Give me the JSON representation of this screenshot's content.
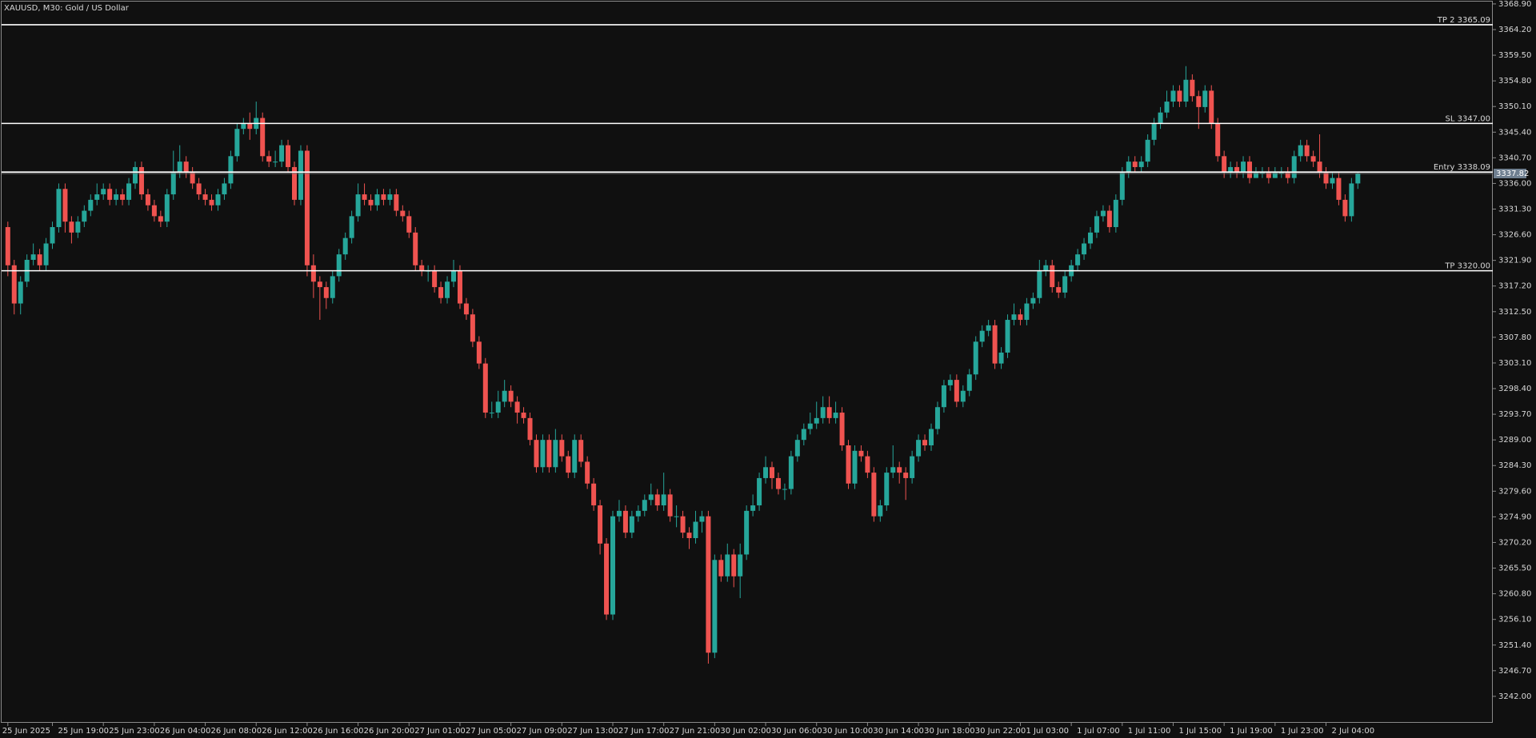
{
  "chart_data": {
    "type": "candlestick",
    "title": "XAUUSD, M30:  Gold / US Dollar",
    "categories": [
      "25 Jun 2025",
      null,
      null,
      null,
      null,
      null,
      null,
      "25 Jun 19:00",
      null,
      null,
      null,
      null,
      null,
      null,
      null,
      "25 Jun 23:00",
      null,
      null,
      null,
      null,
      null,
      null,
      null,
      "26 Jun 04:00",
      null,
      null,
      null,
      null,
      null,
      null,
      null,
      "26 Jun 08:00",
      null,
      null,
      null,
      null,
      null,
      null,
      null,
      "26 Jun 12:00",
      null,
      null,
      null,
      null,
      null,
      null,
      null,
      "26 Jun 16:00",
      null,
      null,
      null,
      null,
      null,
      null,
      null,
      "26 Jun 20:00",
      null,
      null,
      null,
      null,
      null,
      null,
      null,
      "27 Jun 01:00",
      null,
      null,
      null,
      null,
      null,
      null,
      null,
      "27 Jun 05:00",
      null,
      null,
      null,
      null,
      null,
      null,
      null,
      "27 Jun 09:00",
      null,
      null,
      null,
      null,
      null,
      null,
      null,
      "27 Jun 13:00",
      null,
      null,
      null,
      null,
      null,
      null,
      null,
      "27 Jun 17:00",
      null,
      null,
      null,
      null,
      null,
      null,
      null,
      "27 Jun 21:00",
      null,
      null,
      null,
      null,
      null,
      null,
      null,
      "30 Jun 02:00",
      null,
      null,
      null,
      null,
      null,
      null,
      null,
      "30 Jun 06:00",
      null,
      null,
      null,
      null,
      null,
      null,
      null,
      "30 Jun 10:00",
      null,
      null,
      null,
      null,
      null,
      null,
      null,
      "30 Jun 14:00",
      null,
      null,
      null,
      null,
      null,
      null,
      null,
      "30 Jun 18:00",
      null,
      null,
      null,
      null,
      null,
      null,
      null,
      "30 Jun 22:00",
      null,
      null,
      null,
      null,
      null,
      null,
      null,
      "1 Jul 03:00",
      null,
      null,
      null,
      null,
      null,
      null,
      null,
      "1 Jul 07:00",
      null,
      null,
      null,
      null,
      null,
      null,
      null,
      "1 Jul 11:00",
      null,
      null,
      null,
      null,
      null,
      null,
      null,
      "1 Jul 15:00",
      null,
      null,
      null,
      null,
      null,
      null,
      null,
      "1 Jul 19:00",
      null,
      null,
      null,
      null,
      null,
      null,
      null,
      "1 Jul 23:00",
      null,
      null,
      null,
      null,
      null,
      null,
      null,
      "2 Jul 04:00",
      null,
      null,
      null,
      null,
      null
    ],
    "open": [
      3328,
      3321,
      3314,
      3318,
      3322,
      3323,
      3321,
      3325,
      3328,
      3335,
      3329,
      3327,
      3329,
      3331,
      3333,
      3334,
      3335,
      3333,
      3334,
      3333,
      3336,
      3339,
      3334,
      3332,
      3330,
      3329,
      3334,
      3338,
      3340,
      3338,
      3336,
      3334,
      3333,
      3332,
      3334,
      3336,
      3341,
      3346,
      3347,
      3346,
      3348,
      3341,
      3340,
      3340,
      3343,
      3339,
      3333,
      3342,
      3321,
      3318,
      3317,
      3315,
      3319,
      3323,
      3326,
      3330,
      3334,
      3333,
      3332,
      3334,
      3333,
      3334,
      3331,
      3330,
      3327,
      3321,
      3320,
      3320,
      3317,
      3315,
      3318,
      3320,
      3314,
      3312,
      3307,
      3303,
      3294,
      3294,
      3296,
      3298,
      3296,
      3294,
      3293,
      3289,
      3284,
      3289,
      3284,
      3289,
      3286,
      3283,
      3289,
      3285,
      3281,
      3277,
      3270,
      3257,
      3275,
      3276,
      3272,
      3275,
      3276,
      3278,
      3279,
      3277,
      3279,
      3275,
      3275,
      3272,
      3271,
      3274,
      3275,
      3250,
      3267,
      3264,
      3268,
      3264,
      3268,
      3276,
      3277,
      3282,
      3284,
      3282,
      3280,
      3280,
      3286,
      3289,
      3291,
      3292,
      3293,
      3295,
      3293,
      3294,
      3288,
      3281,
      3287,
      3286,
      3283,
      3275,
      3277,
      3283,
      3284,
      3283,
      3282,
      3286,
      3289,
      3288,
      3291,
      3295,
      3299,
      3300,
      3296,
      3298,
      3301,
      3307,
      3309,
      3310,
      3303,
      3305,
      3311,
      3312,
      3311,
      3314,
      3315,
      3320,
      3321,
      3317,
      3316,
      3319,
      3321,
      3323,
      3325,
      3327,
      3330,
      3331,
      3328,
      3333,
      3338,
      3340,
      3339,
      3340,
      3344,
      3347,
      3349,
      3351,
      3353,
      3351,
      3355,
      3352,
      3350,
      3353,
      3347,
      3341,
      3338,
      3339,
      3338,
      3340,
      3337,
      3338,
      3338,
      3337,
      3338,
      3338,
      3337,
      3341,
      3343,
      3341,
      3340,
      3338,
      3336,
      3337,
      3333,
      3330,
      3336
    ],
    "high": [
      3329,
      3322,
      3319,
      3323,
      3325,
      3324,
      3326,
      3329,
      3336,
      3336,
      3330,
      3330,
      3332,
      3334,
      3336,
      3336,
      3336,
      3335,
      3335,
      3337,
      3340,
      3340,
      3335,
      3333,
      3331,
      3335,
      3342,
      3343,
      3341,
      3339,
      3337,
      3335,
      3334,
      3335,
      3337,
      3342,
      3347,
      3348,
      3349,
      3351,
      3349,
      3342,
      3342,
      3344,
      3344,
      3340,
      3343,
      3343,
      3323,
      3319,
      3318,
      3320,
      3324,
      3327,
      3331,
      3336,
      3336,
      3334,
      3335,
      3335,
      3335,
      3335,
      3332,
      3331,
      3328,
      3322,
      3321,
      3321,
      3318,
      3319,
      3322,
      3321,
      3315,
      3313,
      3308,
      3304,
      3296,
      3298,
      3300,
      3299,
      3297,
      3295,
      3294,
      3290,
      3290,
      3290,
      3291,
      3290,
      3287,
      3290,
      3290,
      3286,
      3282,
      3278,
      3271,
      3276,
      3278,
      3277,
      3276,
      3277,
      3279,
      3281,
      3280,
      3283,
      3280,
      3277,
      3276,
      3273,
      3276,
      3276,
      3276,
      3268,
      3268,
      3270,
      3269,
      3270,
      3277,
      3279,
      3283,
      3286,
      3285,
      3283,
      3281,
      3287,
      3290,
      3292,
      3294,
      3296,
      3297,
      3297,
      3296,
      3295,
      3289,
      3288,
      3288,
      3287,
      3284,
      3278,
      3284,
      3288,
      3285,
      3284,
      3287,
      3290,
      3290,
      3292,
      3296,
      3300,
      3301,
      3301,
      3299,
      3302,
      3308,
      3310,
      3311,
      3311,
      3306,
      3312,
      3314,
      3313,
      3315,
      3316,
      3322,
      3322,
      3322,
      3318,
      3320,
      3322,
      3324,
      3326,
      3328,
      3331,
      3332,
      3332,
      3334,
      3339,
      3341,
      3341,
      3341,
      3345,
      3348,
      3350,
      3353,
      3354,
      3354,
      3357.5,
      3356,
      3353,
      3354,
      3354,
      3348,
      3342,
      3340,
      3340,
      3341,
      3341,
      3339,
      3339,
      3339,
      3339,
      3339,
      3339,
      3342,
      3344,
      3344,
      3342,
      3345,
      3339,
      3338,
      3338,
      3334,
      3337,
      3338
    ],
    "low": [
      3319,
      3312,
      3312,
      3317,
      3321,
      3320,
      3320,
      3324,
      3327,
      3327,
      3325,
      3326,
      3328,
      3330,
      3332,
      3333,
      3332,
      3332,
      3332,
      3332,
      3335,
      3333,
      3331,
      3329,
      3328,
      3328,
      3333,
      3337,
      3337,
      3335,
      3333,
      3332,
      3331,
      3331,
      3333,
      3335,
      3340,
      3345,
      3344,
      3345,
      3340,
      3339,
      3339,
      3339,
      3338,
      3332,
      3332,
      3319,
      3315,
      3311,
      3313,
      3314,
      3318,
      3322,
      3325,
      3329,
      3332,
      3331,
      3331,
      3332,
      3332,
      3330,
      3329,
      3326,
      3320,
      3319,
      3318,
      3316,
      3314,
      3314,
      3317,
      3313,
      3311,
      3306,
      3302,
      3293,
      3293,
      3293,
      3295,
      3295,
      3292,
      3292,
      3288,
      3283,
      3283,
      3283,
      3283,
      3285,
      3282,
      3282,
      3284,
      3280,
      3276,
      3268,
      3256,
      3256,
      3274,
      3271,
      3271,
      3274,
      3275,
      3277,
      3276,
      3276,
      3274,
      3273,
      3271,
      3269,
      3270,
      3272,
      3248,
      3249,
      3263,
      3263,
      3262,
      3260,
      3267,
      3275,
      3276,
      3281,
      3280,
      3279,
      3278,
      3279,
      3285,
      3288,
      3290,
      3291,
      3292,
      3292,
      3292,
      3287,
      3280,
      3280,
      3285,
      3282,
      3274,
      3274,
      3276,
      3282,
      3281,
      3278,
      3281,
      3285,
      3287,
      3287,
      3290,
      3294,
      3298,
      3295,
      3295,
      3297,
      3300,
      3306,
      3308,
      3302,
      3302,
      3304,
      3310,
      3310,
      3310,
      3313,
      3314,
      3319,
      3316,
      3315,
      3315,
      3318,
      3320,
      3322,
      3324,
      3326,
      3329,
      3327,
      3327,
      3332,
      3337,
      3338,
      3338,
      3339,
      3343,
      3346,
      3348,
      3350,
      3350,
      3350,
      3351,
      3346,
      3349,
      3346,
      3340,
      3337,
      3337,
      3337,
      3337,
      3336,
      3337,
      3337,
      3336,
      3337,
      3337,
      3336,
      3336,
      3340,
      3340,
      3339,
      3337,
      3335,
      3335,
      3332,
      3329,
      3329,
      3335
    ],
    "close": [
      3321,
      3314,
      3318,
      3322,
      3323,
      3321,
      3325,
      3328,
      3335,
      3329,
      3327,
      3329,
      3331,
      3333,
      3334,
      3335,
      3333,
      3334,
      3333,
      3336,
      3339,
      3334,
      3332,
      3330,
      3329,
      3334,
      3338,
      3340,
      3338,
      3336,
      3334,
      3333,
      3332,
      3334,
      3336,
      3341,
      3346,
      3347,
      3346,
      3348,
      3341,
      3340,
      3340,
      3343,
      3339,
      3333,
      3342,
      3321,
      3318,
      3317,
      3315,
      3319,
      3323,
      3326,
      3330,
      3334,
      3333,
      3332,
      3334,
      3333,
      3334,
      3331,
      3330,
      3327,
      3321,
      3320,
      3320,
      3317,
      3315,
      3318,
      3320,
      3314,
      3312,
      3307,
      3303,
      3294,
      3294,
      3296,
      3298,
      3296,
      3294,
      3293,
      3289,
      3284,
      3289,
      3284,
      3289,
      3286,
      3283,
      3289,
      3285,
      3281,
      3277,
      3270,
      3257,
      3275,
      3276,
      3272,
      3275,
      3276,
      3278,
      3279,
      3277,
      3279,
      3275,
      3275,
      3272,
      3271,
      3274,
      3275,
      3250,
      3267,
      3264,
      3268,
      3264,
      3268,
      3276,
      3277,
      3282,
      3284,
      3282,
      3280,
      3280,
      3286,
      3289,
      3291,
      3292,
      3293,
      3295,
      3293,
      3294,
      3288,
      3281,
      3287,
      3286,
      3283,
      3275,
      3277,
      3283,
      3284,
      3283,
      3282,
      3286,
      3289,
      3288,
      3291,
      3295,
      3299,
      3300,
      3296,
      3298,
      3301,
      3307,
      3309,
      3310,
      3303,
      3305,
      3311,
      3312,
      3311,
      3314,
      3315,
      3320,
      3321,
      3317,
      3316,
      3319,
      3321,
      3323,
      3325,
      3327,
      3330,
      3331,
      3328,
      3333,
      3338,
      3340,
      3339,
      3340,
      3344,
      3347,
      3349,
      3351,
      3353,
      3351,
      3355,
      3352,
      3350,
      3353,
      3347,
      3341,
      3338,
      3339,
      3338,
      3340,
      3337,
      3338,
      3338,
      3337,
      3338,
      3338,
      3337,
      3341,
      3343,
      3341,
      3340,
      3338,
      3336,
      3337,
      3333,
      3330,
      3336,
      3337.82
    ],
    "up_color": "#26a69a",
    "down_color": "#ef5350",
    "ylim": [
      3237.15,
      3369.62
    ],
    "yticks": [
      {
        "value": 3368.9,
        "label": "3368.90"
      },
      {
        "value": 3364.2,
        "label": "3364.20"
      },
      {
        "value": 3359.5,
        "label": "3359.50"
      },
      {
        "value": 3354.8,
        "label": "3354.80"
      },
      {
        "value": 3350.1,
        "label": "3350.10"
      },
      {
        "value": 3345.4,
        "label": "3345.40"
      },
      {
        "value": 3340.7,
        "label": "3340.70"
      },
      {
        "value": 3336,
        "label": "3336.00"
      },
      {
        "value": 3331.3,
        "label": "3331.30"
      },
      {
        "value": 3326.6,
        "label": "3326.60"
      },
      {
        "value": 3321.9,
        "label": "3321.90"
      },
      {
        "value": 3317.2,
        "label": "3317.20"
      },
      {
        "value": 3312.5,
        "label": "3312.50"
      },
      {
        "value": 3307.8,
        "label": "3307.80"
      },
      {
        "value": 3303.1,
        "label": "3303.10"
      },
      {
        "value": 3298.4,
        "label": "3298.40"
      },
      {
        "value": 3293.7,
        "label": "3293.70"
      },
      {
        "value": 3289,
        "label": "3289.00"
      },
      {
        "value": 3284.3,
        "label": "3284.30"
      },
      {
        "value": 3279.6,
        "label": "3279.60"
      },
      {
        "value": 3274.9,
        "label": "3274.90"
      },
      {
        "value": 3270.2,
        "label": "3270.20"
      },
      {
        "value": 3265.5,
        "label": "3265.50"
      },
      {
        "value": 3260.8,
        "label": "3260.80"
      },
      {
        "value": 3256.1,
        "label": "3256.10"
      },
      {
        "value": 3251.4,
        "label": "3251.40"
      },
      {
        "value": 3246.7,
        "label": "3246.70"
      },
      {
        "value": 3242,
        "label": "3242.00"
      }
    ],
    "levels": [
      {
        "value": 3365.09,
        "label": "TP 2 3365.09"
      },
      {
        "value": 3347,
        "label": "SL 3347.00"
      },
      {
        "value": 3338.09,
        "label": "Entry 3338.09"
      },
      {
        "value": 3320,
        "label": "TP 3320.00"
      }
    ],
    "last_price": 3337.82
  }
}
